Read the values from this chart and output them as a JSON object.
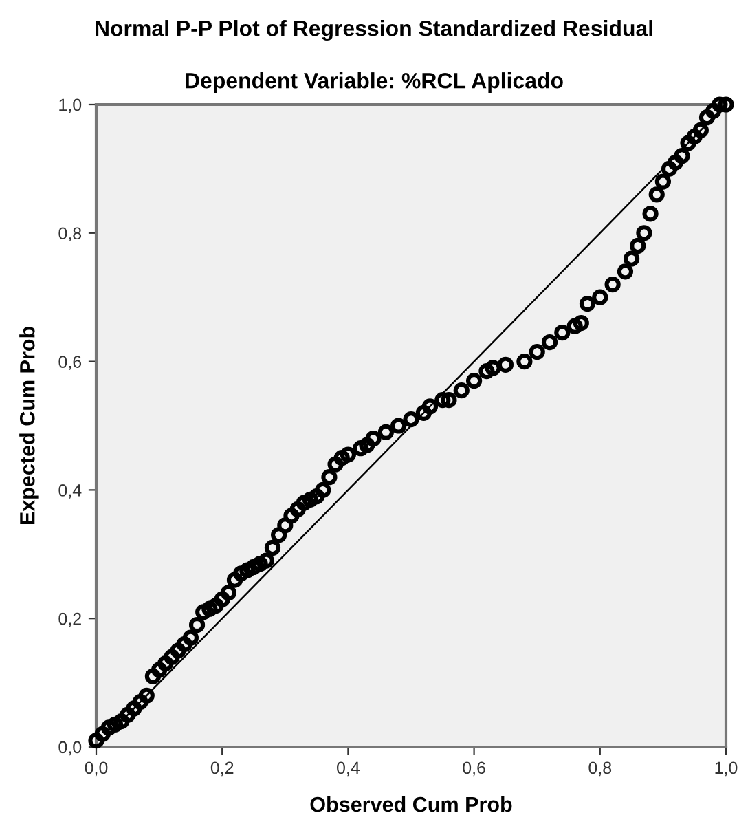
{
  "chart_data": {
    "type": "scatter",
    "title": "Normal P-P Plot of Regression Standardized Residual",
    "subtitle": "Dependent Variable: %RCL Aplicado",
    "xlabel": "Observed Cum Prob",
    "ylabel": "Expected Cum Prob",
    "xlim": [
      0,
      1
    ],
    "ylim": [
      0,
      1
    ],
    "xticks": [
      {
        "value": 0,
        "label": "0,0"
      },
      {
        "value": 0.2,
        "label": "0,2"
      },
      {
        "value": 0.4,
        "label": "0,4"
      },
      {
        "value": 0.6,
        "label": "0,6"
      },
      {
        "value": 0.8,
        "label": "0,8"
      },
      {
        "value": 1,
        "label": "1,0"
      }
    ],
    "yticks": [
      {
        "value": 0,
        "label": "0,0"
      },
      {
        "value": 0.2,
        "label": "0,2"
      },
      {
        "value": 0.4,
        "label": "0,4"
      },
      {
        "value": 0.6,
        "label": "0,6"
      },
      {
        "value": 0.8,
        "label": "0,8"
      },
      {
        "value": 1,
        "label": "1,0"
      }
    ],
    "grid": false,
    "legend": false,
    "marker": "circle",
    "series": [
      {
        "color": "#000000",
        "x": [
          0.0,
          0.01,
          0.02,
          0.03,
          0.04,
          0.05,
          0.06,
          0.07,
          0.08,
          0.09,
          0.1,
          0.11,
          0.12,
          0.13,
          0.14,
          0.15,
          0.16,
          0.17,
          0.18,
          0.19,
          0.2,
          0.21,
          0.22,
          0.23,
          0.24,
          0.25,
          0.26,
          0.27,
          0.28,
          0.29,
          0.3,
          0.31,
          0.32,
          0.33,
          0.34,
          0.35,
          0.36,
          0.37,
          0.38,
          0.39,
          0.4,
          0.42,
          0.43,
          0.44,
          0.46,
          0.48,
          0.5,
          0.52,
          0.53,
          0.55,
          0.56,
          0.58,
          0.6,
          0.62,
          0.63,
          0.65,
          0.68,
          0.7,
          0.72,
          0.74,
          0.76,
          0.77,
          0.78,
          0.8,
          0.82,
          0.84,
          0.85,
          0.86,
          0.87,
          0.88,
          0.89,
          0.9,
          0.91,
          0.92,
          0.93,
          0.94,
          0.95,
          0.96,
          0.97,
          0.98,
          0.99,
          1.0
        ],
        "values": [
          0.01,
          0.02,
          0.03,
          0.035,
          0.04,
          0.05,
          0.06,
          0.07,
          0.08,
          0.11,
          0.12,
          0.13,
          0.14,
          0.15,
          0.16,
          0.17,
          0.19,
          0.21,
          0.215,
          0.22,
          0.23,
          0.24,
          0.26,
          0.27,
          0.275,
          0.28,
          0.285,
          0.29,
          0.31,
          0.33,
          0.345,
          0.36,
          0.37,
          0.38,
          0.385,
          0.39,
          0.4,
          0.42,
          0.44,
          0.45,
          0.455,
          0.465,
          0.47,
          0.48,
          0.49,
          0.5,
          0.51,
          0.52,
          0.53,
          0.54,
          0.54,
          0.555,
          0.57,
          0.585,
          0.59,
          0.595,
          0.6,
          0.615,
          0.63,
          0.645,
          0.655,
          0.66,
          0.69,
          0.7,
          0.72,
          0.74,
          0.76,
          0.78,
          0.8,
          0.83,
          0.86,
          0.88,
          0.9,
          0.91,
          0.92,
          0.94,
          0.95,
          0.96,
          0.98,
          0.99,
          1.0,
          1.0
        ]
      },
      {
        "type": "line",
        "color": "#000000",
        "marker": "none",
        "x": [
          0,
          1
        ],
        "values": [
          0,
          1
        ]
      }
    ]
  }
}
